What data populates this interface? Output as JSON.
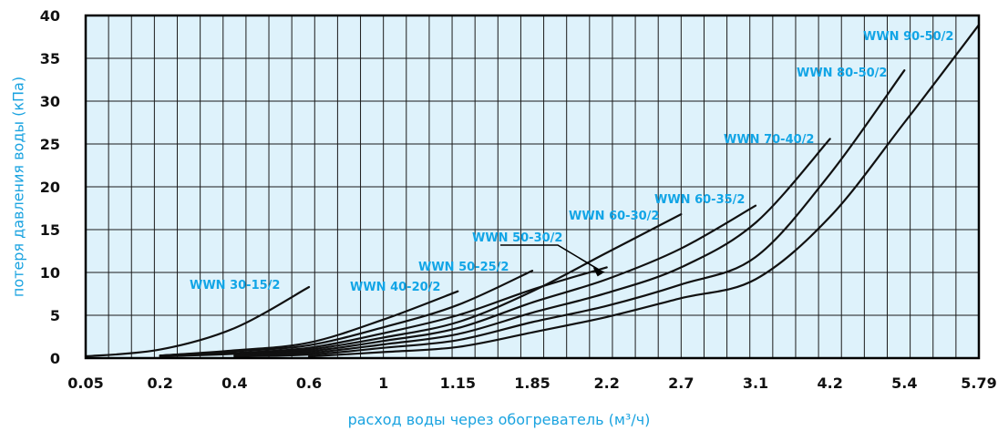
{
  "chart_data": {
    "type": "line",
    "title": "",
    "xlabel": "расход воды через обогреватель (м³/ч)",
    "ylabel": "потеря давления воды (кПа)",
    "x_ticks": [
      "0.05",
      "0.2",
      "0.4",
      "0.6",
      "1",
      "1.15",
      "1.85",
      "2.2",
      "2.7",
      "3.1",
      "4.2",
      "5.4",
      "5.79"
    ],
    "y_ticks": [
      0,
      5,
      10,
      15,
      20,
      25,
      30,
      35,
      40
    ],
    "ylim": [
      0,
      40
    ],
    "grid": true,
    "colors": {
      "plot_bg": "#def2fb",
      "grid": "#1b1b1b",
      "line": "#111111",
      "label": "#12a5e6",
      "axis_title": "#1aa3e0"
    },
    "series": [
      {
        "name": "WWN 30-15/2",
        "x": [
          "0.05",
          "0.2",
          "0.4",
          "0.6"
        ],
        "y": [
          0.2,
          1.0,
          3.5,
          8.3
        ]
      },
      {
        "name": "WWN 40-20/2",
        "x": [
          "0.2",
          "0.4",
          "0.6",
          "1",
          "1.15"
        ],
        "y": [
          0.3,
          0.9,
          1.8,
          4.5,
          7.8
        ]
      },
      {
        "name": "WWN 50-25/2",
        "x": [
          "0.2",
          "0.4",
          "0.6",
          "1",
          "1.15",
          "1.85"
        ],
        "y": [
          0.3,
          0.8,
          1.5,
          3.6,
          6.2,
          10.2
        ]
      },
      {
        "name": "WWN 50-30/2",
        "x": [
          "0.2",
          "0.4",
          "0.6",
          "1",
          "1.15",
          "1.85",
          "2.2"
        ],
        "y": [
          0.2,
          0.6,
          1.2,
          2.9,
          5.0,
          8.0,
          10.6
        ]
      },
      {
        "name": "WWN 60-30/2",
        "x": [
          "0.2",
          "0.4",
          "0.6",
          "1",
          "1.15",
          "1.85",
          "2.2",
          "2.7"
        ],
        "y": [
          0.2,
          0.5,
          1.0,
          2.4,
          4.2,
          7.8,
          12.3,
          16.8
        ]
      },
      {
        "name": "WWN 60-35/2",
        "x": [
          "0.4",
          "0.6",
          "1",
          "1.15",
          "1.85",
          "2.2",
          "2.7",
          "3.1"
        ],
        "y": [
          0.4,
          0.8,
          2.0,
          3.5,
          6.5,
          9.2,
          12.8,
          17.8
        ]
      },
      {
        "name": "WWN 70-40/2",
        "x": [
          "0.4",
          "0.6",
          "1",
          "1.15",
          "1.85",
          "2.2",
          "2.7",
          "3.1",
          "4.2"
        ],
        "y": [
          0.3,
          0.6,
          1.6,
          2.8,
          5.3,
          7.6,
          10.6,
          15.8,
          25.6
        ]
      },
      {
        "name": "WWN 80-50/2",
        "x": [
          "0.4",
          "0.6",
          "1",
          "1.15",
          "1.85",
          "2.2",
          "2.7",
          "3.1",
          "4.2",
          "5.4"
        ],
        "y": [
          0.2,
          0.4,
          1.2,
          2.1,
          4.2,
          6.1,
          8.6,
          11.8,
          21.5,
          33.6
        ]
      },
      {
        "name": "WWN 90-50/2",
        "x": [
          "0.6",
          "1",
          "1.15",
          "1.85",
          "2.2",
          "2.7",
          "3.1",
          "4.2",
          "5.4",
          "5.79"
        ],
        "y": [
          0.2,
          0.7,
          1.3,
          3.0,
          4.8,
          7.0,
          9.2,
          16.5,
          27.5,
          38.9
        ]
      }
    ]
  }
}
